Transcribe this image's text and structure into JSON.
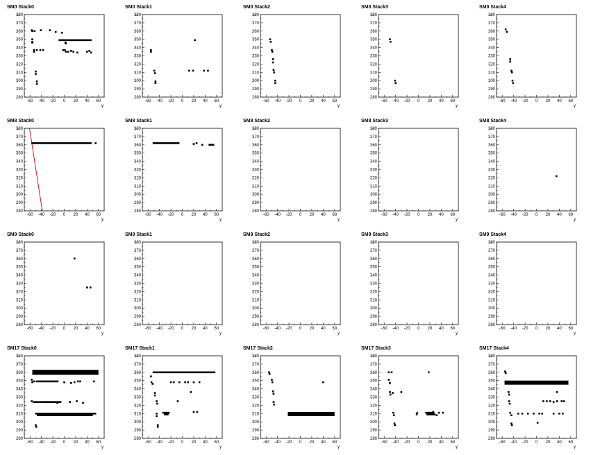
{
  "chart_data": {
    "type": "scatter",
    "grid": false,
    "xlabel": "y",
    "ylabel": "x",
    "xlim": [
      -70,
      70
    ],
    "ylim": [
      280,
      380
    ],
    "xticks": [
      -60,
      -40,
      -20,
      0,
      20,
      40,
      60
    ],
    "yticks": [
      280,
      290,
      300,
      310,
      320,
      330,
      340,
      350,
      360,
      370,
      380
    ],
    "colors": {
      "points": "#000000",
      "fit_line": "#cc0000",
      "frame": "#000000"
    },
    "panels": [
      {
        "title": "SM0 Stack0",
        "points": [
          [
            -57,
            361
          ],
          [
            -56,
            360
          ],
          [
            -52,
            360
          ],
          [
            -41,
            361
          ],
          [
            -25,
            361
          ],
          [
            -15,
            359
          ],
          [
            -4,
            358
          ],
          [
            -56,
            350
          ],
          [
            -56,
            347
          ],
          [
            -56,
            346
          ],
          [
            -53,
            337
          ],
          [
            -53,
            335
          ],
          [
            -48,
            337
          ],
          [
            -42,
            337
          ],
          [
            -37,
            337
          ],
          [
            -50,
            311
          ],
          [
            -50,
            308
          ],
          [
            -48,
            299
          ],
          [
            -48,
            296
          ],
          [
            -2,
            337
          ],
          [
            1,
            337
          ],
          [
            3,
            335
          ],
          [
            7,
            335
          ],
          [
            12,
            336
          ],
          [
            16,
            335
          ],
          [
            23,
            334
          ],
          [
            40,
            335
          ],
          [
            44,
            336
          ],
          [
            47,
            334
          ],
          [
            2,
            346
          ],
          [
            3,
            345
          ]
        ],
        "segments": [
          {
            "x": [
              -10,
              48
            ],
            "y": 349
          }
        ]
      },
      {
        "title": "SM0 Stack1",
        "points": [
          [
            -55,
            337
          ],
          [
            -55,
            335
          ],
          [
            -49,
            312
          ],
          [
            -48,
            309
          ],
          [
            -47,
            299
          ],
          [
            -47,
            297
          ],
          [
            22,
            349
          ],
          [
            12,
            312
          ],
          [
            19,
            312
          ],
          [
            38,
            312
          ],
          [
            45,
            312
          ]
        ]
      },
      {
        "title": "SM0 Stack2",
        "points": [
          [
            -53,
            350
          ],
          [
            -52,
            347
          ],
          [
            -50,
            337
          ],
          [
            -49,
            335
          ],
          [
            -48,
            326
          ],
          [
            -48,
            322
          ],
          [
            -47,
            313
          ],
          [
            -46,
            310
          ],
          [
            -44,
            300
          ],
          [
            -44,
            297
          ]
        ]
      },
      {
        "title": "SM0 Stack3",
        "points": [
          [
            -50,
            350
          ],
          [
            -49,
            347
          ],
          [
            -41,
            300
          ],
          [
            -40,
            297
          ]
        ]
      },
      {
        "title": "SM0 Stack4",
        "points": [
          [
            -54,
            362
          ],
          [
            -52,
            359
          ],
          [
            -46,
            326
          ],
          [
            -46,
            323
          ],
          [
            -44,
            312
          ],
          [
            -43,
            310
          ],
          [
            -42,
            300
          ],
          [
            -41,
            297
          ]
        ]
      },
      {
        "title": "SM8 Stack0",
        "points": [
          [
            55,
            362
          ]
        ],
        "segments": [
          {
            "x": [
              -58,
              48
            ],
            "y": 362
          }
        ],
        "fit_line": [
          [
            -62,
            385
          ],
          [
            -38,
            278
          ]
        ]
      },
      {
        "title": "SM8 Stack1",
        "points": [
          [
            20,
            361
          ],
          [
            25,
            362
          ],
          [
            35,
            360
          ]
        ],
        "segments": [
          {
            "x": [
              -52,
              -5
            ],
            "y": 362
          },
          {
            "x": [
              46,
              56
            ],
            "y": 360
          }
        ]
      },
      {
        "title": "SM8 Stack2",
        "points": []
      },
      {
        "title": "SM8 Stack3",
        "points": []
      },
      {
        "title": "SM8 Stack4",
        "points": [
          [
            35,
            322
          ]
        ]
      },
      {
        "title": "SM9 Stack0",
        "points": [
          [
            18,
            360
          ],
          [
            40,
            325
          ],
          [
            46,
            325
          ]
        ]
      },
      {
        "title": "SM9 Stack1",
        "points": []
      },
      {
        "title": "SM9 Stack2",
        "points": []
      },
      {
        "title": "SM9 Stack3",
        "points": []
      },
      {
        "title": "SM9 Stack4",
        "points": []
      },
      {
        "title": "SM17 Stack0",
        "points": [
          [
            -57,
            351
          ],
          [
            -56,
            348
          ],
          [
            -53,
            349
          ],
          [
            0,
            348
          ],
          [
            12,
            347
          ],
          [
            18,
            348
          ],
          [
            24,
            349
          ],
          [
            28,
            349
          ],
          [
            52,
            349
          ],
          [
            -50,
            296
          ],
          [
            -49,
            294
          ],
          [
            -57,
            325
          ],
          [
            10,
            324
          ],
          [
            22,
            325
          ],
          [
            33,
            323
          ],
          [
            -12,
            323
          ],
          [
            -30,
            324
          ]
        ],
        "bars": [
          {
            "x": [
              -56,
              60
            ],
            "y": [
              357,
              363
            ]
          }
        ],
        "segments": [
          {
            "x": [
              -50,
              -10
            ],
            "y": 349
          },
          {
            "x": [
              -55,
              -5
            ],
            "y": 324
          },
          {
            "x": [
              -51,
              56
            ],
            "y": 310
          },
          {
            "x": [
              -48,
              50
            ],
            "y": 308
          }
        ]
      },
      {
        "title": "SM17 Stack1",
        "points": [
          [
            -55,
            355
          ],
          [
            -54,
            348
          ],
          [
            -52,
            346
          ],
          [
            -48,
            335
          ],
          [
            -48,
            332
          ],
          [
            -45,
            325
          ],
          [
            -44,
            322
          ],
          [
            -45,
            310
          ],
          [
            -45,
            307
          ],
          [
            -43,
            296
          ],
          [
            -43,
            294
          ],
          [
            -20,
            348
          ],
          [
            -15,
            348
          ],
          [
            -5,
            348
          ],
          [
            5,
            348
          ],
          [
            10,
            348
          ],
          [
            20,
            348
          ],
          [
            30,
            348
          ],
          [
            -8,
            325
          ],
          [
            15,
            336
          ],
          [
            20,
            312
          ],
          [
            26,
            312
          ]
        ],
        "segments": [
          {
            "x": [
              -52,
              58
            ],
            "y": 360
          },
          {
            "x": [
              -35,
              -22
            ],
            "y": 311
          },
          {
            "x": [
              -32,
              -24
            ],
            "y": 309
          }
        ]
      },
      {
        "title": "SM17 Stack2",
        "points": [
          [
            -55,
            360
          ],
          [
            -54,
            358
          ],
          [
            -50,
            351
          ],
          [
            -49,
            348
          ],
          [
            -48,
            337
          ],
          [
            -47,
            334
          ],
          [
            -47,
            324
          ],
          [
            -46,
            321
          ],
          [
            40,
            348
          ]
        ],
        "bars": [
          {
            "x": [
              -22,
              60
            ],
            "y": [
              307,
              312
            ]
          }
        ]
      },
      {
        "title": "SM17 Stack3",
        "points": [
          [
            -52,
            360
          ],
          [
            -47,
            360
          ],
          [
            -52,
            351
          ],
          [
            -50,
            347
          ],
          [
            -50,
            336
          ],
          [
            -49,
            333
          ],
          [
            -45,
            335
          ],
          [
            -30,
            336
          ],
          [
            -44,
            311
          ],
          [
            -43,
            308
          ],
          [
            -42,
            298
          ],
          [
            -41,
            296
          ],
          [
            18,
            360
          ],
          [
            -2,
            311
          ],
          [
            -3,
            309
          ],
          [
            26,
            312
          ],
          [
            32,
            308
          ],
          [
            36,
            311
          ],
          [
            43,
            311
          ]
        ],
        "segments": [
          {
            "x": [
              12,
              28
            ],
            "y": 311
          },
          {
            "x": [
              14,
              30
            ],
            "y": 309
          }
        ]
      },
      {
        "title": "SM17 Stack4",
        "points": [
          [
            -55,
            361
          ],
          [
            -54,
            359
          ],
          [
            -49,
            336
          ],
          [
            -48,
            333
          ],
          [
            -48,
            325
          ],
          [
            -47,
            322
          ],
          [
            -46,
            311
          ],
          [
            -44,
            308
          ],
          [
            -44,
            298
          ],
          [
            -43,
            296
          ],
          [
            -32,
            310
          ],
          [
            -25,
            310
          ],
          [
            -15,
            310
          ],
          [
            -5,
            310
          ],
          [
            5,
            310
          ],
          [
            10,
            310
          ],
          [
            2,
            299
          ],
          [
            12,
            325
          ],
          [
            18,
            325
          ],
          [
            24,
            325
          ],
          [
            30,
            324
          ],
          [
            36,
            325
          ],
          [
            44,
            325
          ],
          [
            48,
            325
          ],
          [
            36,
            336
          ],
          [
            30,
            310
          ],
          [
            40,
            310
          ],
          [
            46,
            310
          ]
        ],
        "bars": [
          {
            "x": [
              -56,
              56
            ],
            "y": [
              345,
              350
            ]
          }
        ]
      }
    ]
  }
}
